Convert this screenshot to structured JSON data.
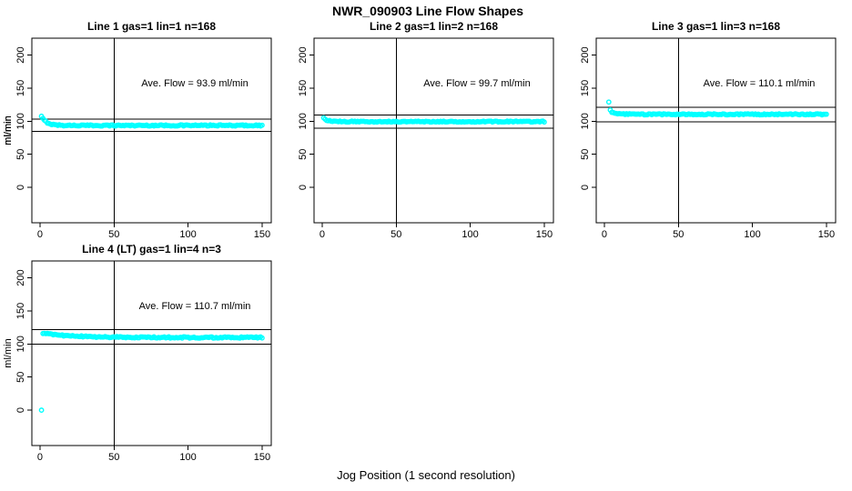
{
  "figure": {
    "title": "NWR_090903  Line Flow Shapes",
    "xlabel": "Jog Position (1 second resolution)",
    "ylabel": "ml/min",
    "point_color": "#00FFFF",
    "line_color": "#000000",
    "background_color": "#FFFFFF"
  },
  "chart_data": [
    {
      "type": "scatter",
      "title": "Line 1 gas=1 lin=1 n=168",
      "annotation": "Ave. Flow =  93.9  ml/min",
      "ave_flow": 93.9,
      "n": 168,
      "ylabel": "ml/min",
      "xticks": [
        0,
        50,
        100,
        150
      ],
      "yticks": [
        0,
        50,
        100,
        150,
        200
      ],
      "xlim": [
        -5.5,
        156.2
      ],
      "ylim": [
        -53.5,
        225.5
      ],
      "vline_x": 50,
      "hlines": [
        103.3,
        84.5
      ],
      "grid": false,
      "series_model": {
        "x_start": 1,
        "x_end": 150,
        "step": 1,
        "y_start": 107,
        "y_settle": 93.6,
        "decay": 3.5,
        "noise": 0.9,
        "outliers": []
      }
    },
    {
      "type": "scatter",
      "title": "Line 2 gas=1 lin=2 n=168",
      "annotation": "Ave. Flow =  99.7  ml/min",
      "ave_flow": 99.7,
      "n": 168,
      "ylabel": "ml/min",
      "xticks": [
        0,
        50,
        100,
        150
      ],
      "yticks": [
        0,
        50,
        100,
        150,
        200
      ],
      "xlim": [
        -5.5,
        156.2
      ],
      "ylim": [
        -53.5,
        225.5
      ],
      "vline_x": 50,
      "hlines": [
        109.7,
        89.7
      ],
      "grid": false,
      "series_model": {
        "x_start": 1,
        "x_end": 150,
        "step": 1,
        "y_start": 104.5,
        "y_settle": 99.4,
        "decay": 2.5,
        "noise": 0.8,
        "outliers": []
      }
    },
    {
      "type": "scatter",
      "title": "Line 3 gas=1 lin=3 n=168",
      "annotation": "Ave. Flow =  110.1  ml/min",
      "ave_flow": 110.1,
      "n": 168,
      "ylabel": "ml/min",
      "xticks": [
        0,
        50,
        100,
        150
      ],
      "yticks": [
        0,
        50,
        100,
        150,
        200
      ],
      "xlim": [
        -5.5,
        156.2
      ],
      "ylim": [
        -53.5,
        225.5
      ],
      "vline_x": 50,
      "hlines": [
        121.1,
        99.1
      ],
      "grid": false,
      "series_model": {
        "x_start": 5,
        "x_end": 150,
        "step": 1,
        "y_start": 113.5,
        "y_settle": 110.4,
        "decay": 4,
        "noise": 0.8,
        "outliers": [
          [
            3,
            129
          ],
          [
            4,
            117
          ]
        ]
      }
    },
    {
      "type": "scatter",
      "title": "Line 4 (LT) gas=1 lin=4 n=3",
      "annotation": "Ave. Flow =  110.7  ml/min",
      "ave_flow": 110.7,
      "n": 3,
      "ylabel": "ml/min",
      "xticks": [
        0,
        50,
        100,
        150
      ],
      "yticks": [
        0,
        50,
        100,
        150,
        200
      ],
      "xlim": [
        -5.5,
        156.2
      ],
      "ylim": [
        -53.5,
        225.5
      ],
      "vline_x": 50,
      "hlines": [
        121.8,
        99.6
      ],
      "grid": false,
      "series_model": {
        "x_start": 2,
        "x_end": 150,
        "step": 1,
        "y_start": 116,
        "y_settle": 109.8,
        "decay": 20,
        "noise": 1.0,
        "outliers": [
          [
            1,
            0
          ]
        ]
      }
    }
  ]
}
